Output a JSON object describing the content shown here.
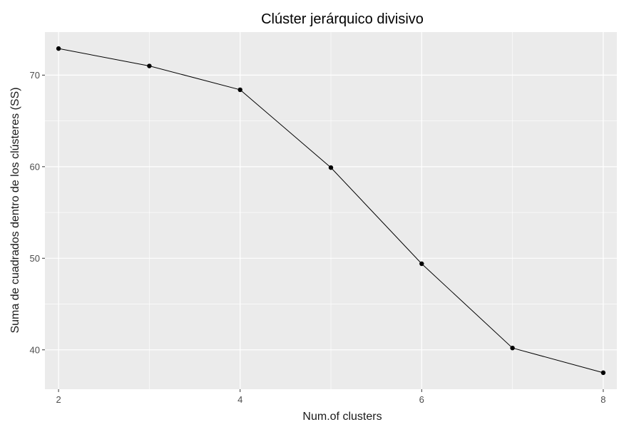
{
  "chart_data": {
    "type": "line",
    "title": "Clúster jerárquico divisivo",
    "xlabel": "Num.of clusters",
    "ylabel": "Suma de cuadrados dentro de los clústeres (SS)",
    "x": [
      2,
      3,
      4,
      5,
      6,
      7,
      8
    ],
    "series": [
      {
        "values": [
          72.9,
          71.0,
          68.4,
          59.9,
          49.4,
          40.2,
          37.5
        ]
      }
    ],
    "xlim": [
      1.85,
      8.15
    ],
    "ylim": [
      35.7,
      74.7
    ],
    "xticks": [
      2,
      4,
      6,
      8
    ],
    "xticks_minor": [
      3,
      5,
      7
    ],
    "yticks": [
      40,
      50,
      60,
      70
    ],
    "yticks_minor": [
      45,
      55,
      65
    ],
    "grid": true,
    "legend": "none",
    "colors": {
      "panel": "#ebebeb",
      "grid": "#ffffff",
      "line": "#000000",
      "point": "#000000",
      "tick_text": "#4d4d4d",
      "tick_mark": "#333333"
    }
  }
}
